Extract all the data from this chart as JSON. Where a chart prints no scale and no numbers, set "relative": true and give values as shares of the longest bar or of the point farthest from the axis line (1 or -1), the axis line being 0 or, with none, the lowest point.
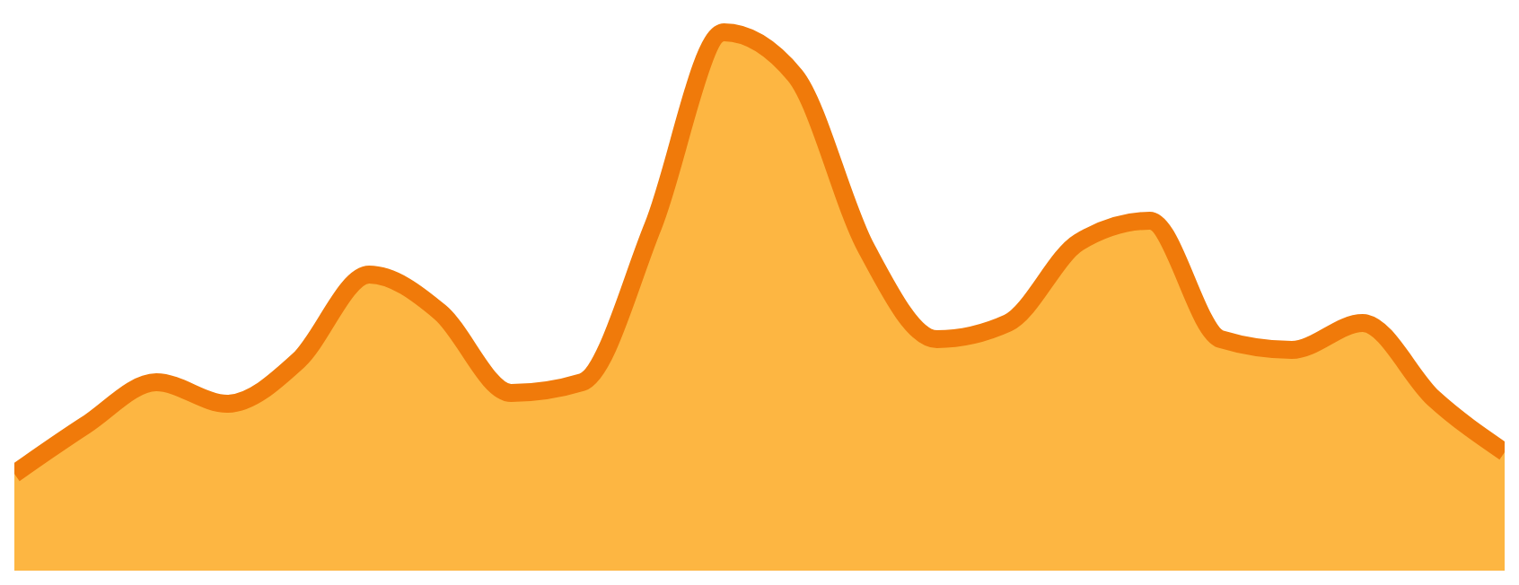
{
  "chart_data": {
    "type": "area",
    "relative": true,
    "categories": [
      null,
      null,
      null,
      null,
      null,
      null,
      null,
      null,
      null,
      null,
      null,
      null,
      null,
      null,
      null,
      null,
      null,
      null,
      null,
      null,
      null,
      null
    ],
    "series": [
      {
        "color": "#f07a0a",
        "values": [
          0.18,
          0.27,
          0.35,
          0.31,
          0.39,
          0.55,
          0.48,
          0.33,
          0.35,
          0.64,
          1,
          0.92,
          0.6,
          0.43,
          0.46,
          0.61,
          0.65,
          0.43,
          0.41,
          0.46,
          0.32,
          0.22
        ]
      }
    ],
    "grid": false,
    "legend": false
  }
}
